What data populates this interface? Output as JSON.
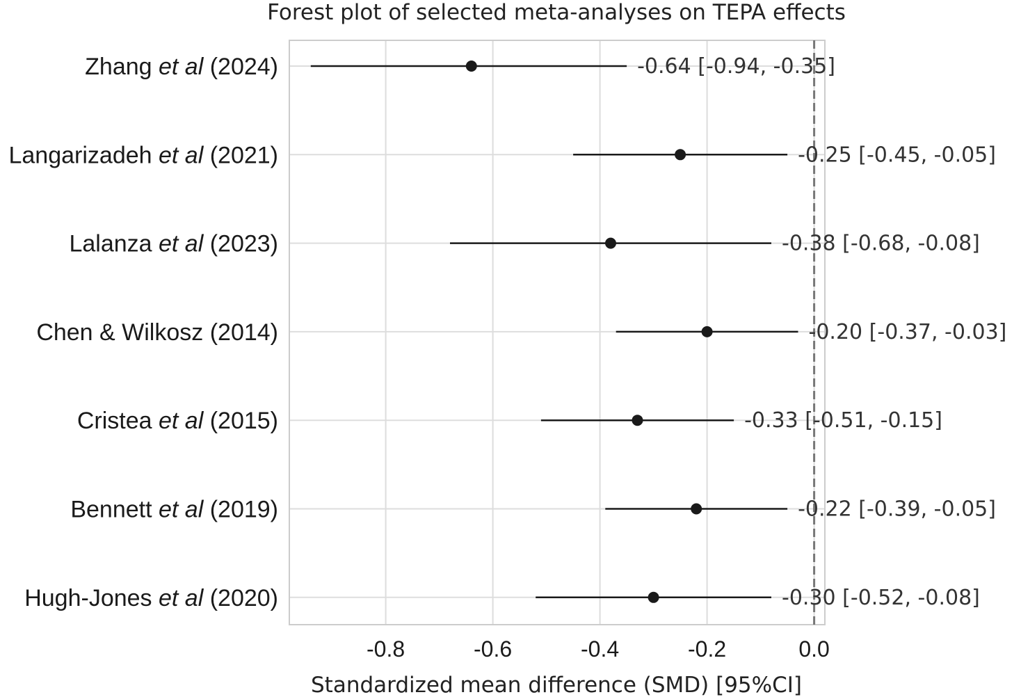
{
  "chart_data": {
    "type": "scatter",
    "title": "Forest plot of selected meta-analyses on TEPA effects",
    "xlabel": "Standardized mean difference (SMD) [95%CI]",
    "ylabel": "",
    "xlim": [
      -0.98,
      0.02
    ],
    "xticks": [
      "-0.8",
      "-0.6",
      "-0.4",
      "-0.2",
      "0.0"
    ],
    "xtick_values": [
      -0.8,
      -0.6,
      -0.4,
      -0.2,
      0.0
    ],
    "reference_line": 0.0,
    "grid": true,
    "studies": [
      {
        "author": "Zhang",
        "etal": "et al",
        "year": "(2024)",
        "smd": -0.64,
        "ci_low": -0.94,
        "ci_high": -0.35,
        "label": "-0.64 [-0.94, -0.35]"
      },
      {
        "author": "Langarizadeh",
        "etal": "et al",
        "year": "(2021)",
        "smd": -0.25,
        "ci_low": -0.45,
        "ci_high": -0.05,
        "label": "-0.25 [-0.45, -0.05]"
      },
      {
        "author": "Lalanza",
        "etal": "et al",
        "year": "(2023)",
        "smd": -0.38,
        "ci_low": -0.68,
        "ci_high": -0.08,
        "label": "-0.38 [-0.68, -0.08]"
      },
      {
        "author": "Chen & Wilkosz",
        "etal": "",
        "year": "(2014)",
        "smd": -0.2,
        "ci_low": -0.37,
        "ci_high": -0.03,
        "label": "-0.20 [-0.37, -0.03]"
      },
      {
        "author": "Cristea",
        "etal": "et al",
        "year": "(2015)",
        "smd": -0.33,
        "ci_low": -0.51,
        "ci_high": -0.15,
        "label": "-0.33 [-0.51, -0.15]"
      },
      {
        "author": "Bennett",
        "etal": "et al",
        "year": "(2019)",
        "smd": -0.22,
        "ci_low": -0.39,
        "ci_high": -0.05,
        "label": "-0.22 [-0.39, -0.05]"
      },
      {
        "author": "Hugh-Jones",
        "etal": "et al",
        "year": "(2020)",
        "smd": -0.3,
        "ci_low": -0.52,
        "ci_high": -0.08,
        "label": "-0.30 [-0.52, -0.08]"
      }
    ],
    "colors": {
      "marker": "#1a1a1a",
      "ci_line": "#1a1a1a",
      "grid": "#dddddd",
      "frame": "#cccccc",
      "reference": "#777777"
    }
  }
}
